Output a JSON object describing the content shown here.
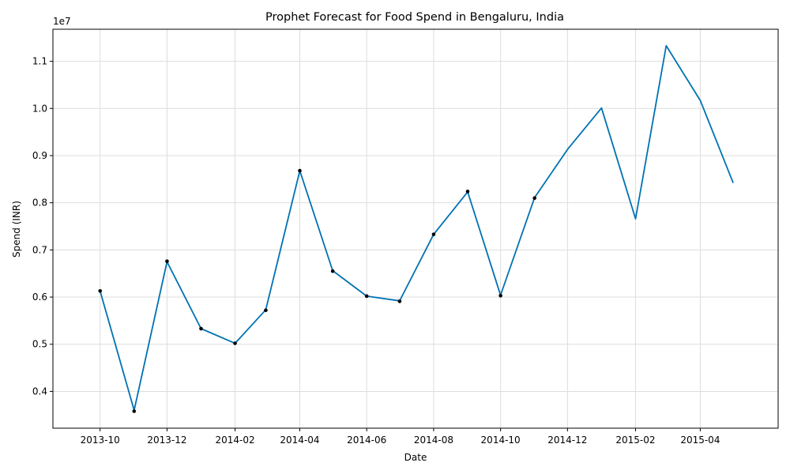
{
  "chart_data": {
    "type": "line",
    "title": "Prophet Forecast for Food Spend in Bengaluru, India",
    "xlabel": "Date",
    "ylabel": "Spend (INR)",
    "y_scale_label": "1e7",
    "x_ticks": [
      "2013-10",
      "2013-12",
      "2014-02",
      "2014-04",
      "2014-06",
      "2014-08",
      "2014-10",
      "2014-12",
      "2015-02",
      "2015-04"
    ],
    "y_ticks": [
      0.4,
      0.5,
      0.6,
      0.7,
      0.8,
      0.9,
      1.0,
      1.1
    ],
    "y_tick_labels": [
      "0.4",
      "0.5",
      "0.6",
      "0.7",
      "0.8",
      "0.9",
      "1.0",
      "1.1"
    ],
    "ylim": [
      0.322,
      1.168
    ],
    "xlim": [
      "2013-08-19",
      "2015-06-11"
    ],
    "grid": true,
    "line_color": "#0072B2",
    "point_color": "#000000",
    "forecast": {
      "x": [
        "2013-10-01",
        "2013-11-01",
        "2013-12-01",
        "2014-01-01",
        "2014-02-01",
        "2014-03-01",
        "2014-04-01",
        "2014-05-01",
        "2014-06-01",
        "2014-07-01",
        "2014-08-01",
        "2014-09-01",
        "2014-10-01",
        "2014-11-01",
        "2014-12-01",
        "2015-01-01",
        "2015-02-01",
        "2015-03-01",
        "2015-04-01",
        "2015-05-01"
      ],
      "y": [
        0.613,
        0.36,
        0.675,
        0.533,
        0.502,
        0.573,
        0.868,
        0.656,
        0.602,
        0.592,
        0.733,
        0.823,
        0.604,
        0.811,
        0.913,
        1.001,
        0.766,
        1.133,
        1.017,
        0.842
      ]
    },
    "actual": {
      "x": [
        "2013-10-01",
        "2013-11-01",
        "2013-12-01",
        "2014-01-01",
        "2014-02-01",
        "2014-03-01",
        "2014-04-01",
        "2014-05-01",
        "2014-06-01",
        "2014-07-01",
        "2014-08-01",
        "2014-09-01",
        "2014-10-01",
        "2014-11-01"
      ],
      "y": [
        0.613,
        0.358,
        0.676,
        0.533,
        0.502,
        0.572,
        0.868,
        0.655,
        0.602,
        0.591,
        0.733,
        0.824,
        0.603,
        0.81
      ]
    }
  }
}
